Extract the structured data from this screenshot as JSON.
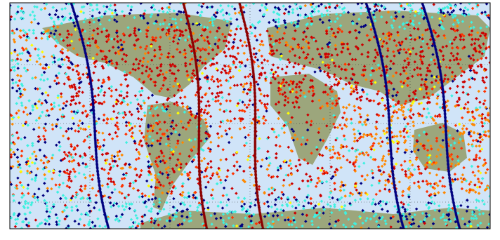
{
  "map": {
    "colors": [
      "#00007f",
      "#3ff0e0",
      "#ffff00",
      "#ff8800",
      "#ff3300",
      "#cc0000"
    ]
  }
}
